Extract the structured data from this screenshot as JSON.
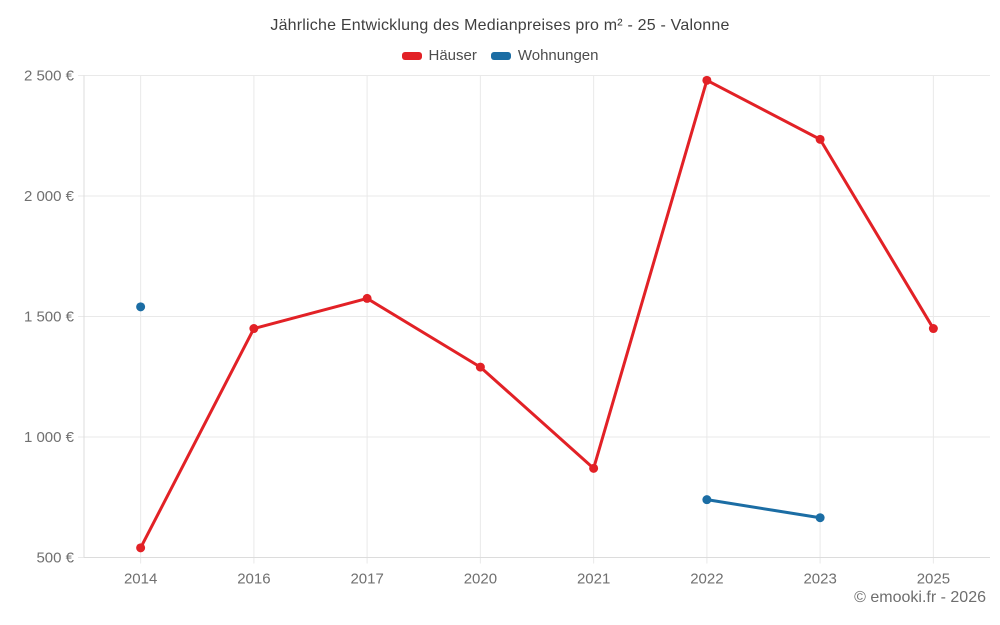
{
  "title": "Jährliche Entwicklung des Medianpreises pro m² - 25 - Valonne",
  "footer": "© emooki.fr - 2026",
  "colors": {
    "hauser": "#e22126",
    "wohnungen": "#1b6da4",
    "gridline": "#e9e9e9",
    "axis_border": "#dcdcdc",
    "tick_label": "#707070",
    "title_text": "#3f3f3f"
  },
  "chart_data": {
    "type": "line",
    "title": "Jährliche Entwicklung des Medianpreises pro m² - 25 - Valonne",
    "categories": [
      "2014",
      "2016",
      "2017",
      "2020",
      "2021",
      "2022",
      "2023",
      "2025"
    ],
    "series": [
      {
        "name": "Häuser",
        "color": "#e22126",
        "values": [
          540,
          1450,
          1575,
          1290,
          870,
          2480,
          2235,
          1450
        ]
      },
      {
        "name": "Wohnungen",
        "color": "#1b6da4",
        "values": [
          1540,
          null,
          null,
          null,
          null,
          740,
          665,
          null
        ]
      }
    ],
    "xlabel": "",
    "ylabel": "",
    "ylim": [
      500,
      2500
    ],
    "yticks": [
      {
        "value": 500,
        "label": "500 €"
      },
      {
        "value": 1000,
        "label": "1 000 €"
      },
      {
        "value": 1500,
        "label": "1 500 €"
      },
      {
        "value": 2000,
        "label": "2 000 €"
      },
      {
        "value": 2500,
        "label": "2 500 €"
      }
    ],
    "grid": true,
    "legend_position": "top"
  }
}
